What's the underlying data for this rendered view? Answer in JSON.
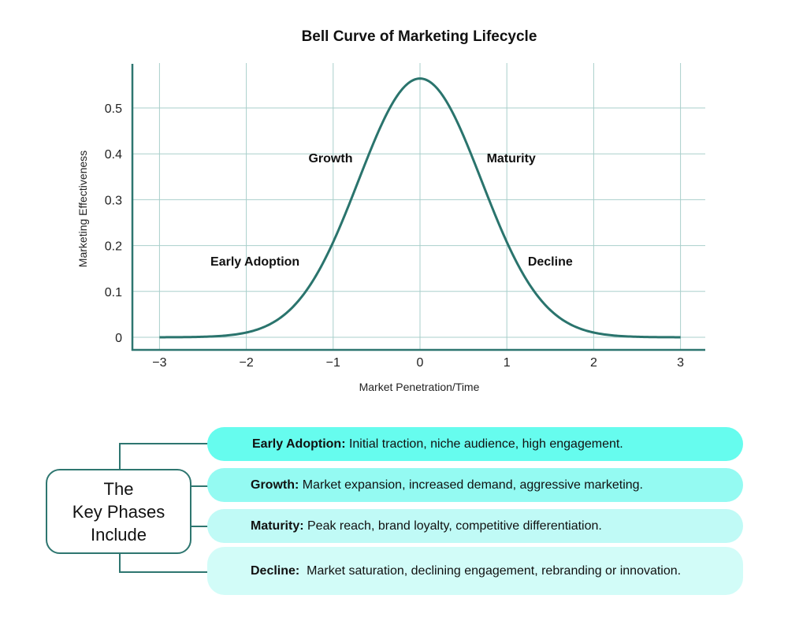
{
  "title": "Bell Curve of Marketing Lifecycle",
  "colors": {
    "curve": "#2A746D",
    "axis": "#2E7670",
    "grid": "#A9CFCB",
    "pill_1": "#66FCEE",
    "pill_2": "#94FAF2",
    "pill_3": "#C0FAF6",
    "pill_4": "#D2FCF8",
    "box_border": "#2E7670"
  },
  "chart_data": {
    "type": "line",
    "title": "Bell Curve of Marketing Lifecycle",
    "xlabel": "Market Penetration/Time",
    "ylabel": "Marketing Effectiveness",
    "xlim": [
      -3,
      3
    ],
    "ylim": [
      0,
      0.56
    ],
    "grid": true,
    "x_ticks": [
      "-3",
      "-2",
      "-1",
      "0",
      "1",
      "2",
      "3"
    ],
    "y_ticks": [
      "0",
      "0.1",
      "0.2",
      "0.3",
      "0.4",
      "0.5"
    ],
    "function": "y = exp(-x^2) / sqrt(pi)",
    "series": [
      {
        "name": "Marketing Effectiveness",
        "x": [
          -3,
          -2.5,
          -2,
          -1.5,
          -1,
          -0.5,
          0,
          0.5,
          1,
          1.5,
          2,
          2.5,
          3
        ],
        "values": [
          0.0001,
          0.0011,
          0.0103,
          0.0595,
          0.2076,
          0.4394,
          0.5642,
          0.4394,
          0.2076,
          0.0595,
          0.0103,
          0.0011,
          0.0001
        ]
      }
    ],
    "annotations": [
      {
        "text": "Early Adoption",
        "x": -1.9,
        "y": 0.165
      },
      {
        "text": "Growth",
        "x": -1.03,
        "y": 0.39
      },
      {
        "text": "Maturity",
        "x": 1.05,
        "y": 0.39
      },
      {
        "text": "Decline",
        "x": 1.5,
        "y": 0.165
      }
    ]
  },
  "key_phases": {
    "box_lines": [
      "The",
      "Key Phases",
      "Include"
    ],
    "items": [
      {
        "name": "Early Adoption:",
        "desc": " Initial traction, niche audience, high engagement."
      },
      {
        "name": "Growth:",
        "desc": " Market expansion, increased demand, aggressive marketing."
      },
      {
        "name": "Maturity:",
        "desc": " Peak reach, brand loyalty, competitive differentiation."
      },
      {
        "name": "Decline:",
        "desc": "  Market saturation, declining engagement, rebranding or innovation."
      }
    ]
  }
}
